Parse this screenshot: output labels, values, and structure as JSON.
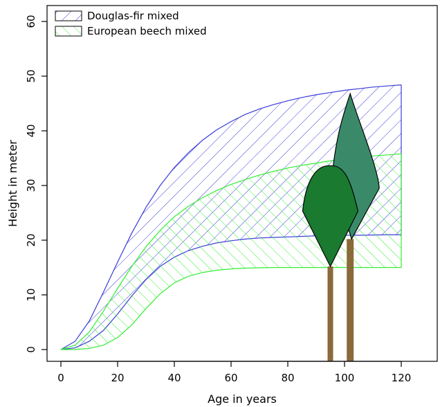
{
  "chart_data": {
    "type": "area",
    "xlabel": "Age in years",
    "ylabel": "Height in meter",
    "xlim": [
      -5,
      130
    ],
    "ylim": [
      -2,
      62
    ],
    "x_ticks": [
      0,
      20,
      40,
      60,
      80,
      100,
      120
    ],
    "y_ticks": [
      0,
      10,
      20,
      30,
      40,
      50,
      60
    ],
    "legend_position": "top-left",
    "grid": false,
    "x": [
      0,
      5,
      10,
      15,
      20,
      25,
      30,
      35,
      40,
      45,
      50,
      55,
      60,
      65,
      70,
      75,
      80,
      85,
      90,
      95,
      100,
      105,
      110,
      115,
      120
    ],
    "series": [
      {
        "name": "Douglas-fir mixed",
        "color": "#3a3ad8",
        "hatch": "diagonal-up",
        "upper": [
          0,
          1.5,
          5.2,
          10.5,
          16,
          21.3,
          26,
          30,
          33.3,
          36,
          38.3,
          40.2,
          41.7,
          43,
          44,
          44.8,
          45.5,
          46.1,
          46.6,
          47,
          47.4,
          47.7,
          48,
          48.2,
          48.4
        ],
        "lower": [
          0,
          0.3,
          1.5,
          3.5,
          6.5,
          9.8,
          12.8,
          15.2,
          16.9,
          18.1,
          18.9,
          19.5,
          19.9,
          20.2,
          20.4,
          20.5,
          20.6,
          20.7,
          20.8,
          20.85,
          20.9,
          20.9,
          20.95,
          21,
          21
        ]
      },
      {
        "name": "European beech mixed",
        "color": "#33ee33",
        "hatch": "diagonal-down",
        "upper": [
          0,
          0.8,
          3.2,
          7,
          11.2,
          15.2,
          18.8,
          21.8,
          24.3,
          26.2,
          27.8,
          29.1,
          30.2,
          31.1,
          31.9,
          32.6,
          33.2,
          33.7,
          34.1,
          34.5,
          34.8,
          35.1,
          35.4,
          35.6,
          35.8
        ],
        "lower": [
          0,
          0,
          0.2,
          0.8,
          2.2,
          4.5,
          7.5,
          10.2,
          12.2,
          13.4,
          14.1,
          14.5,
          14.75,
          14.88,
          14.95,
          15,
          15,
          15,
          15,
          15,
          15,
          15,
          15,
          15,
          15
        ]
      }
    ],
    "tree_illustrations": [
      {
        "kind": "conifer",
        "x": 102,
        "top": 46.8,
        "crown_base": 20.2,
        "fill": "#3a8a6a"
      },
      {
        "kind": "broadleaf",
        "x": 95,
        "top": 33.6,
        "crown_base": 15.2,
        "fill": "#1a7a30"
      }
    ],
    "trunk_color": "#8b6a3a"
  }
}
